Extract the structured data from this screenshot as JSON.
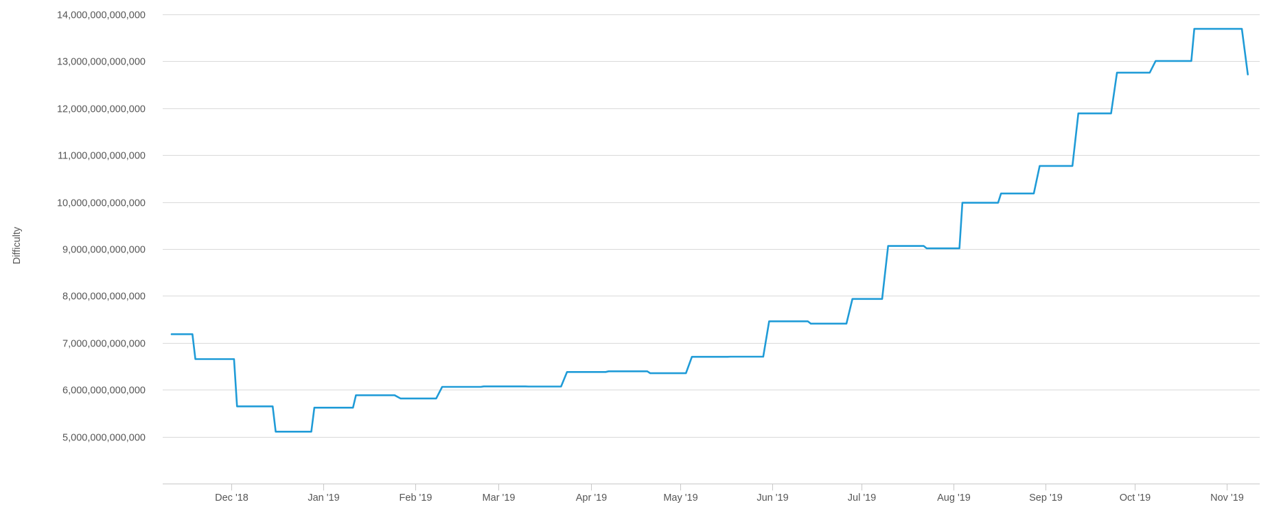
{
  "chart_data": {
    "type": "line",
    "ylabel": "Difficulty",
    "ylim": [
      4000000000000,
      14000000000000
    ],
    "yticks": [
      5000000000000,
      6000000000000,
      7000000000000,
      8000000000000,
      9000000000000,
      10000000000000,
      11000000000000,
      12000000000000,
      13000000000000,
      14000000000000
    ],
    "ytick_labels": [
      "5,000,000,000,000",
      "6,000,000,000,000",
      "7,000,000,000,000",
      "8,000,000,000,000",
      "9,000,000,000,000",
      "10,000,000,000,000",
      "11,000,000,000,000",
      "12,000,000,000,000",
      "13,000,000,000,000",
      "14,000,000,000,000"
    ],
    "xlim": [
      "2018-11-08",
      "2019-11-12"
    ],
    "xticks": [
      "2018-12-01",
      "2019-01-01",
      "2019-02-01",
      "2019-03-01",
      "2019-04-01",
      "2019-05-01",
      "2019-06-01",
      "2019-07-01",
      "2019-08-01",
      "2019-09-01",
      "2019-10-01",
      "2019-11-01"
    ],
    "xtick_labels": [
      "Dec '18",
      "Jan '19",
      "Feb '19",
      "Mar '19",
      "Apr '19",
      "May '19",
      "Jun '19",
      "Jul '19",
      "Aug '19",
      "Sep '19",
      "Oct '19",
      "Nov '19"
    ],
    "grid": true,
    "series": [
      {
        "color": "#1f9bd7",
        "points": [
          [
            "2018-11-11",
            7184000000000
          ],
          [
            "2018-11-18",
            7184000000000
          ],
          [
            "2018-11-19",
            6653000000000
          ],
          [
            "2018-12-02",
            6653000000000
          ],
          [
            "2018-12-03",
            5646000000000
          ],
          [
            "2018-12-15",
            5646000000000
          ],
          [
            "2018-12-16",
            5107000000000
          ],
          [
            "2018-12-28",
            5107000000000
          ],
          [
            "2018-12-29",
            5619000000000
          ],
          [
            "2019-01-11",
            5619000000000
          ],
          [
            "2019-01-12",
            5883000000000
          ],
          [
            "2019-01-25",
            5883000000000
          ],
          [
            "2019-01-27",
            5814000000000
          ],
          [
            "2019-02-08",
            5814000000000
          ],
          [
            "2019-02-10",
            6061000000000
          ],
          [
            "2019-02-23",
            6061000000000
          ],
          [
            "2019-02-24",
            6072000000000
          ],
          [
            "2019-03-10",
            6072000000000
          ],
          [
            "2019-03-11",
            6068000000000
          ],
          [
            "2019-03-22",
            6068000000000
          ],
          [
            "2019-03-24",
            6379000000000
          ],
          [
            "2019-04-06",
            6379000000000
          ],
          [
            "2019-04-07",
            6393000000000
          ],
          [
            "2019-04-20",
            6393000000000
          ],
          [
            "2019-04-21",
            6353000000000
          ],
          [
            "2019-05-03",
            6353000000000
          ],
          [
            "2019-05-05",
            6702000000000
          ],
          [
            "2019-05-17",
            6702000000000
          ],
          [
            "2019-05-18",
            6704000000000
          ],
          [
            "2019-05-29",
            6704000000000
          ],
          [
            "2019-05-31",
            7459000000000
          ],
          [
            "2019-06-13",
            7459000000000
          ],
          [
            "2019-06-14",
            7409000000000
          ],
          [
            "2019-06-26",
            7409000000000
          ],
          [
            "2019-06-28",
            7935000000000
          ],
          [
            "2019-07-08",
            7935000000000
          ],
          [
            "2019-07-10",
            9064000000000
          ],
          [
            "2019-07-22",
            9064000000000
          ],
          [
            "2019-07-23",
            9013000000000
          ],
          [
            "2019-08-03",
            9013000000000
          ],
          [
            "2019-08-04",
            9986000000000
          ],
          [
            "2019-08-16",
            9986000000000
          ],
          [
            "2019-08-17",
            10183000000000
          ],
          [
            "2019-08-28",
            10183000000000
          ],
          [
            "2019-08-30",
            10771000000000
          ],
          [
            "2019-09-10",
            10771000000000
          ],
          [
            "2019-09-12",
            11890000000000
          ],
          [
            "2019-09-23",
            11890000000000
          ],
          [
            "2019-09-25",
            12759000000000
          ],
          [
            "2019-10-06",
            12759000000000
          ],
          [
            "2019-10-08",
            13008000000000
          ],
          [
            "2019-10-20",
            13008000000000
          ],
          [
            "2019-10-21",
            13691000000000
          ],
          [
            "2019-11-06",
            13691000000000
          ],
          [
            "2019-11-08",
            12720000000000
          ]
        ]
      }
    ]
  }
}
